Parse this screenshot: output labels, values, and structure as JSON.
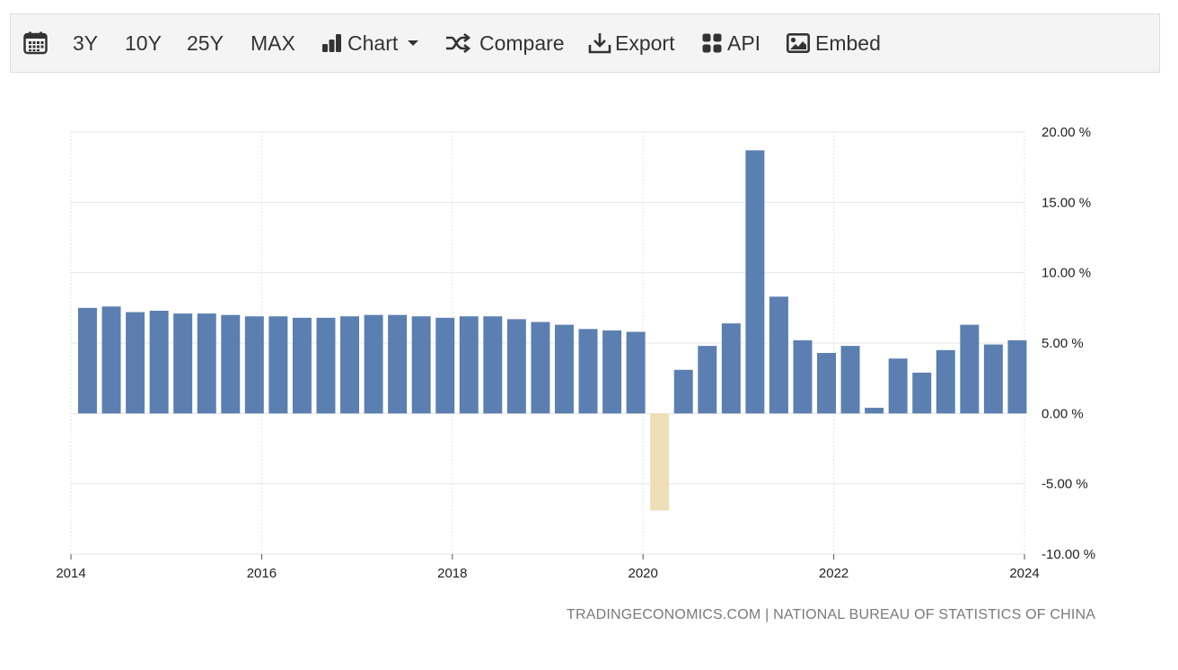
{
  "toolbar": {
    "items": [
      {
        "label": "",
        "icon": "calendar-icon"
      },
      {
        "label": "3Y"
      },
      {
        "label": "10Y"
      },
      {
        "label": "25Y"
      },
      {
        "label": "MAX"
      },
      {
        "label": "Chart",
        "icon": "bar-chart-icon"
      },
      {
        "label": "Compare",
        "icon": "shuffle-icon"
      },
      {
        "label": "Export",
        "icon": "download-icon"
      },
      {
        "label": "API",
        "icon": "grid-icon"
      },
      {
        "label": "Embed",
        "icon": "image-icon"
      }
    ]
  },
  "colors": {
    "positive_bar": "#5b7fb0",
    "negative_bar": "#eedfb7",
    "grid": "#e6e6e6",
    "axis_text": "#222222"
  },
  "source": "TRADINGECONOMICS.COM | NATIONAL BUREAU OF STATISTICS OF CHINA",
  "chart_data": {
    "type": "bar",
    "title": "",
    "xlabel": "",
    "ylabel": "",
    "ylim": [
      -10,
      20
    ],
    "xlim": [
      2014,
      2024
    ],
    "grid": true,
    "y_ticks": [
      20,
      15,
      10,
      5,
      0,
      -5,
      -10
    ],
    "y_tick_labels": [
      "20.00 %",
      "15.00 %",
      "10.00 %",
      "5.00 %",
      "0.00 %",
      "-5.00 %",
      "-10.00 %"
    ],
    "x_ticks": [
      2014,
      2016,
      2018,
      2020,
      2022,
      2024
    ],
    "x_tick_labels": [
      "2014",
      "2016",
      "2018",
      "2020",
      "2022",
      "2024"
    ],
    "categories": [
      "2014 Q1",
      "2014 Q2",
      "2014 Q3",
      "2014 Q4",
      "2015 Q1",
      "2015 Q2",
      "2015 Q3",
      "2015 Q4",
      "2016 Q1",
      "2016 Q2",
      "2016 Q3",
      "2016 Q4",
      "2017 Q1",
      "2017 Q2",
      "2017 Q3",
      "2017 Q4",
      "2018 Q1",
      "2018 Q2",
      "2018 Q3",
      "2018 Q4",
      "2019 Q1",
      "2019 Q2",
      "2019 Q3",
      "2019 Q4",
      "2020 Q1",
      "2020 Q2",
      "2020 Q3",
      "2020 Q4",
      "2021 Q1",
      "2021 Q2",
      "2021 Q3",
      "2021 Q4",
      "2022 Q1",
      "2022 Q2",
      "2022 Q3",
      "2022 Q4",
      "2023 Q1",
      "2023 Q2",
      "2023 Q3",
      "2023 Q4"
    ],
    "values": [
      7.5,
      7.6,
      7.2,
      7.3,
      7.1,
      7.1,
      7.0,
      6.9,
      6.9,
      6.8,
      6.8,
      6.9,
      7.0,
      7.0,
      6.9,
      6.8,
      6.9,
      6.9,
      6.7,
      6.5,
      6.3,
      6.0,
      5.9,
      5.8,
      -6.9,
      3.1,
      4.8,
      6.4,
      18.7,
      8.3,
      5.2,
      4.3,
      4.8,
      0.4,
      3.9,
      2.9,
      4.5,
      6.3,
      4.9,
      5.2
    ]
  }
}
